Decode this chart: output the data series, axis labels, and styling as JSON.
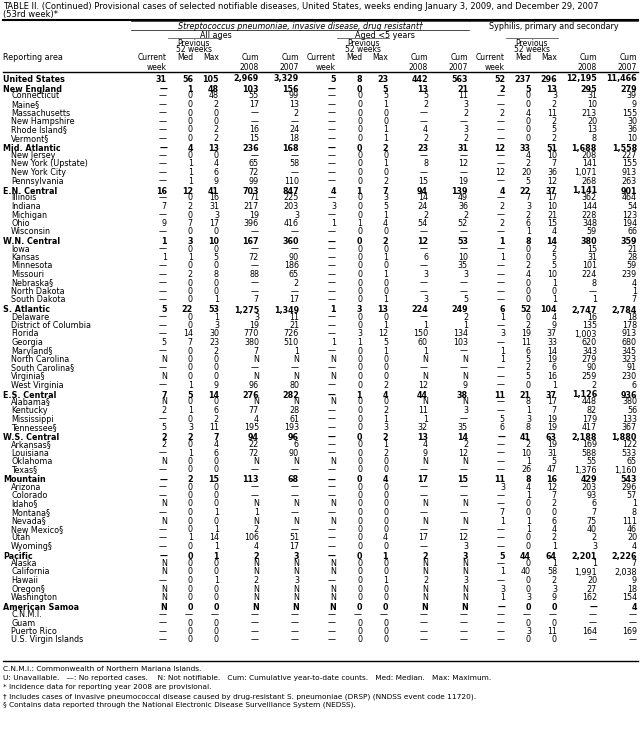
{
  "title1": "TABLE II. (Continued) Provisional cases of selected notifiable diseases, United States, weeks ending January 3, 2009, and December 29, 2007",
  "title2": "(53rd week)*",
  "col_group1": "Streptococcus pneumoniae, invasive disease, drug resistant†",
  "col_group2": "All ages",
  "col_group3": "Aged <5 years",
  "col_group4": "Syphilis, primary and secondary",
  "rows": [
    [
      "United States",
      "31",
      "56",
      "105",
      "2,969",
      "3,329",
      "5",
      "8",
      "23",
      "442",
      "563",
      "52",
      "237",
      "296",
      "12,195",
      "11,466"
    ],
    [
      "New England",
      "—",
      "1",
      "48",
      "103",
      "156",
      "—",
      "0",
      "5",
      "13",
      "21",
      "2",
      "5",
      "13",
      "295",
      "279"
    ],
    [
      "Connecticut",
      "—",
      "0",
      "48",
      "55",
      "99",
      "—",
      "0",
      "5",
      "5",
      "11",
      "—",
      "0",
      "3",
      "31",
      "39"
    ],
    [
      "Maine§",
      "—",
      "0",
      "2",
      "17",
      "13",
      "—",
      "0",
      "1",
      "2",
      "3",
      "—",
      "0",
      "2",
      "10",
      "9"
    ],
    [
      "Massachusetts",
      "—",
      "0",
      "0",
      "—",
      "2",
      "—",
      "0",
      "0",
      "—",
      "2",
      "2",
      "4",
      "11",
      "213",
      "155"
    ],
    [
      "New Hampshire",
      "—",
      "0",
      "0",
      "—",
      "—",
      "—",
      "0",
      "0",
      "—",
      "—",
      "—",
      "0",
      "2",
      "20",
      "30"
    ],
    [
      "Rhode Island§",
      "—",
      "0",
      "2",
      "16",
      "24",
      "—",
      "0",
      "1",
      "4",
      "3",
      "—",
      "0",
      "5",
      "13",
      "36"
    ],
    [
      "Vermont§",
      "—",
      "0",
      "2",
      "15",
      "18",
      "—",
      "0",
      "1",
      "2",
      "2",
      "—",
      "0",
      "2",
      "8",
      "10"
    ],
    [
      "Mid. Atlantic",
      "—",
      "4",
      "13",
      "236",
      "168",
      "—",
      "0",
      "2",
      "23",
      "31",
      "12",
      "33",
      "51",
      "1,688",
      "1,558"
    ],
    [
      "New Jersey",
      "—",
      "0",
      "0",
      "—",
      "—",
      "—",
      "0",
      "0",
      "—",
      "—",
      "—",
      "4",
      "10",
      "208",
      "227"
    ],
    [
      "New York (Upstate)",
      "—",
      "1",
      "4",
      "65",
      "58",
      "—",
      "0",
      "1",
      "8",
      "12",
      "—",
      "2",
      "7",
      "141",
      "155"
    ],
    [
      "New York City",
      "—",
      "1",
      "6",
      "72",
      "—",
      "—",
      "0",
      "0",
      "—",
      "—",
      "12",
      "20",
      "36",
      "1,071",
      "913"
    ],
    [
      "Pennsylvania",
      "—",
      "1",
      "9",
      "99",
      "110",
      "—",
      "0",
      "2",
      "15",
      "19",
      "—",
      "5",
      "12",
      "268",
      "263"
    ],
    [
      "E.N. Central",
      "16",
      "12",
      "41",
      "703",
      "847",
      "4",
      "1",
      "7",
      "94",
      "139",
      "4",
      "22",
      "37",
      "1,141",
      "901"
    ],
    [
      "Illinois",
      "—",
      "0",
      "16",
      "71",
      "225",
      "—",
      "0",
      "3",
      "14",
      "49",
      "—",
      "7",
      "17",
      "362",
      "464"
    ],
    [
      "Indiana",
      "7",
      "2",
      "31",
      "217",
      "203",
      "3",
      "0",
      "5",
      "24",
      "36",
      "2",
      "3",
      "10",
      "144",
      "54"
    ],
    [
      "Michigan",
      "—",
      "0",
      "3",
      "19",
      "3",
      "—",
      "0",
      "1",
      "2",
      "2",
      "—",
      "2",
      "21",
      "228",
      "123"
    ],
    [
      "Ohio",
      "9",
      "7",
      "17",
      "396",
      "416",
      "1",
      "1",
      "4",
      "54",
      "52",
      "2",
      "6",
      "15",
      "348",
      "194"
    ],
    [
      "Wisconsin",
      "—",
      "0",
      "0",
      "—",
      "—",
      "—",
      "0",
      "0",
      "—",
      "—",
      "—",
      "1",
      "4",
      "59",
      "66"
    ],
    [
      "W.N. Central",
      "1",
      "3",
      "10",
      "167",
      "360",
      "—",
      "0",
      "2",
      "12",
      "53",
      "1",
      "8",
      "14",
      "380",
      "359"
    ],
    [
      "Iowa",
      "—",
      "0",
      "0",
      "—",
      "—",
      "—",
      "0",
      "0",
      "—",
      "—",
      "—",
      "0",
      "2",
      "15",
      "21"
    ],
    [
      "Kansas",
      "1",
      "1",
      "5",
      "72",
      "90",
      "—",
      "0",
      "1",
      "6",
      "10",
      "1",
      "0",
      "5",
      "31",
      "28"
    ],
    [
      "Minnesota",
      "—",
      "0",
      "0",
      "—",
      "186",
      "—",
      "0",
      "0",
      "—",
      "35",
      "—",
      "2",
      "5",
      "101",
      "59"
    ],
    [
      "Missouri",
      "—",
      "2",
      "8",
      "88",
      "65",
      "—",
      "0",
      "1",
      "3",
      "3",
      "—",
      "4",
      "10",
      "224",
      "239"
    ],
    [
      "Nebraska§",
      "—",
      "0",
      "0",
      "—",
      "2",
      "—",
      "0",
      "0",
      "—",
      "—",
      "—",
      "0",
      "1",
      "8",
      "4"
    ],
    [
      "North Dakota",
      "—",
      "0",
      "0",
      "—",
      "—",
      "—",
      "0",
      "0",
      "—",
      "—",
      "—",
      "0",
      "0",
      "—",
      "1"
    ],
    [
      "South Dakota",
      "—",
      "0",
      "1",
      "7",
      "17",
      "—",
      "0",
      "1",
      "3",
      "5",
      "—",
      "0",
      "1",
      "1",
      "7"
    ],
    [
      "S. Atlantic",
      "5",
      "22",
      "53",
      "1,275",
      "1,349",
      "1",
      "3",
      "13",
      "224",
      "249",
      "6",
      "52",
      "104",
      "2,747",
      "2,784"
    ],
    [
      "Delaware",
      "—",
      "0",
      "1",
      "3",
      "11",
      "—",
      "0",
      "0",
      "—",
      "2",
      "1",
      "0",
      "4",
      "16",
      "18"
    ],
    [
      "District of Columbia",
      "—",
      "0",
      "3",
      "19",
      "21",
      "—",
      "0",
      "1",
      "1",
      "1",
      "—",
      "2",
      "9",
      "135",
      "178"
    ],
    [
      "Florida",
      "—",
      "14",
      "30",
      "770",
      "726",
      "—",
      "3",
      "12",
      "150",
      "134",
      "3",
      "19",
      "37",
      "1,003",
      "913"
    ],
    [
      "Georgia",
      "5",
      "7",
      "23",
      "380",
      "510",
      "1",
      "1",
      "5",
      "60",
      "103",
      "—",
      "11",
      "33",
      "620",
      "680"
    ],
    [
      "Maryland§",
      "—",
      "0",
      "2",
      "7",
      "1",
      "—",
      "0",
      "1",
      "1",
      "—",
      "1",
      "6",
      "14",
      "343",
      "345"
    ],
    [
      "North Carolina",
      "N",
      "0",
      "0",
      "N",
      "N",
      "N",
      "0",
      "0",
      "N",
      "N",
      "1",
      "5",
      "19",
      "279",
      "323"
    ],
    [
      "South Carolina§",
      "—",
      "0",
      "0",
      "—",
      "—",
      "—",
      "0",
      "0",
      "—",
      "—",
      "—",
      "2",
      "6",
      "90",
      "91"
    ],
    [
      "Virginia§",
      "N",
      "0",
      "0",
      "N",
      "N",
      "N",
      "0",
      "0",
      "N",
      "N",
      "—",
      "5",
      "16",
      "259",
      "230"
    ],
    [
      "West Virginia",
      "—",
      "1",
      "9",
      "96",
      "80",
      "—",
      "0",
      "2",
      "12",
      "9",
      "—",
      "0",
      "1",
      "2",
      "6"
    ],
    [
      "E.S. Central",
      "7",
      "5",
      "14",
      "276",
      "282",
      "—",
      "1",
      "4",
      "44",
      "38",
      "11",
      "21",
      "37",
      "1,126",
      "936"
    ],
    [
      "Alabama§",
      "N",
      "0",
      "0",
      "N",
      "N",
      "N",
      "0",
      "0",
      "N",
      "N",
      "—",
      "8",
      "17",
      "448",
      "380"
    ],
    [
      "Kentucky",
      "2",
      "1",
      "6",
      "77",
      "28",
      "—",
      "0",
      "2",
      "11",
      "3",
      "—",
      "1",
      "7",
      "82",
      "56"
    ],
    [
      "Mississippi",
      "—",
      "0",
      "2",
      "4",
      "61",
      "—",
      "0",
      "1",
      "1",
      "—",
      "5",
      "3",
      "19",
      "179",
      "133"
    ],
    [
      "Tennessee§",
      "5",
      "3",
      "11",
      "195",
      "193",
      "—",
      "0",
      "3",
      "32",
      "35",
      "6",
      "8",
      "19",
      "417",
      "367"
    ],
    [
      "W.S. Central",
      "2",
      "2",
      "7",
      "94",
      "96",
      "—",
      "0",
      "2",
      "13",
      "14",
      "—",
      "41",
      "63",
      "2,188",
      "1,880"
    ],
    [
      "Arkansas§",
      "2",
      "0",
      "4",
      "22",
      "6",
      "—",
      "0",
      "1",
      "4",
      "2",
      "—",
      "2",
      "19",
      "169",
      "122"
    ],
    [
      "Louisiana",
      "—",
      "1",
      "6",
      "72",
      "90",
      "—",
      "0",
      "2",
      "9",
      "12",
      "—",
      "10",
      "31",
      "588",
      "533"
    ],
    [
      "Oklahoma",
      "N",
      "0",
      "0",
      "N",
      "N",
      "N",
      "0",
      "0",
      "N",
      "N",
      "—",
      "1",
      "5",
      "55",
      "65"
    ],
    [
      "Texas§",
      "—",
      "0",
      "0",
      "—",
      "—",
      "—",
      "0",
      "0",
      "—",
      "—",
      "—",
      "26",
      "47",
      "1,376",
      "1,160"
    ],
    [
      "Mountain",
      "—",
      "2",
      "15",
      "113",
      "68",
      "—",
      "0",
      "4",
      "17",
      "15",
      "11",
      "8",
      "16",
      "429",
      "543"
    ],
    [
      "Arizona",
      "—",
      "0",
      "0",
      "—",
      "—",
      "—",
      "0",
      "0",
      "—",
      "—",
      "3",
      "4",
      "12",
      "203",
      "296"
    ],
    [
      "Colorado",
      "—",
      "0",
      "0",
      "—",
      "—",
      "—",
      "0",
      "0",
      "—",
      "—",
      "—",
      "1",
      "7",
      "93",
      "57"
    ],
    [
      "Idaho§",
      "N",
      "0",
      "0",
      "N",
      "N",
      "N",
      "0",
      "0",
      "N",
      "N",
      "—",
      "0",
      "2",
      "6",
      "1"
    ],
    [
      "Montana§",
      "—",
      "0",
      "1",
      "1",
      "—",
      "—",
      "0",
      "0",
      "—",
      "—",
      "7",
      "0",
      "0",
      "7",
      "8"
    ],
    [
      "Nevada§",
      "N",
      "0",
      "0",
      "N",
      "N",
      "N",
      "0",
      "0",
      "N",
      "N",
      "1",
      "1",
      "6",
      "75",
      "111"
    ],
    [
      "New Mexico§",
      "—",
      "0",
      "1",
      "2",
      "—",
      "—",
      "0",
      "0",
      "—",
      "—",
      "—",
      "1",
      "4",
      "40",
      "46"
    ],
    [
      "Utah",
      "—",
      "1",
      "14",
      "106",
      "51",
      "—",
      "0",
      "4",
      "17",
      "12",
      "—",
      "0",
      "2",
      "2",
      "20"
    ],
    [
      "Wyoming§",
      "—",
      "0",
      "1",
      "4",
      "17",
      "—",
      "0",
      "0",
      "—",
      "3",
      "—",
      "0",
      "1",
      "3",
      "4"
    ],
    [
      "Pacific",
      "—",
      "0",
      "1",
      "2",
      "3",
      "—",
      "0",
      "1",
      "2",
      "3",
      "5",
      "44",
      "64",
      "2,201",
      "2,226"
    ],
    [
      "Alaska",
      "N",
      "0",
      "0",
      "N",
      "N",
      "N",
      "0",
      "0",
      "N",
      "N",
      "—",
      "0",
      "1",
      "1",
      "7"
    ],
    [
      "California",
      "N",
      "0",
      "0",
      "N",
      "N",
      "N",
      "0",
      "0",
      "N",
      "N",
      "1",
      "40",
      "58",
      "1,991",
      "2,038"
    ],
    [
      "Hawaii",
      "—",
      "0",
      "1",
      "2",
      "3",
      "—",
      "0",
      "1",
      "2",
      "3",
      "—",
      "0",
      "2",
      "20",
      "9"
    ],
    [
      "Oregon§",
      "N",
      "0",
      "0",
      "N",
      "N",
      "N",
      "0",
      "0",
      "N",
      "N",
      "3",
      "0",
      "3",
      "27",
      "18"
    ],
    [
      "Washington",
      "N",
      "0",
      "0",
      "N",
      "N",
      "N",
      "0",
      "0",
      "N",
      "N",
      "1",
      "3",
      "9",
      "162",
      "154"
    ],
    [
      "American Samoa",
      "N",
      "0",
      "0",
      "N",
      "N",
      "N",
      "0",
      "0",
      "N",
      "N",
      "—",
      "0",
      "0",
      "—",
      "4"
    ],
    [
      "C.N.M.I.",
      "—",
      "—",
      "—",
      "—",
      "—",
      "—",
      "—",
      "—",
      "—",
      "—",
      "—",
      "—",
      "—",
      "—",
      "—"
    ],
    [
      "Guam",
      "—",
      "0",
      "0",
      "—",
      "—",
      "—",
      "0",
      "0",
      "—",
      "—",
      "—",
      "0",
      "0",
      "—",
      "—"
    ],
    [
      "Puerto Rico",
      "—",
      "0",
      "0",
      "—",
      "—",
      "—",
      "0",
      "0",
      "—",
      "—",
      "—",
      "3",
      "11",
      "164",
      "169"
    ],
    [
      "U.S. Virgin Islands",
      "—",
      "0",
      "0",
      "—",
      "—",
      "—",
      "0",
      "0",
      "—",
      "—",
      "—",
      "0",
      "0",
      "—",
      "—"
    ]
  ],
  "section_rows": [
    0,
    1,
    8,
    13,
    19,
    27,
    37,
    42,
    47,
    56,
    62
  ],
  "footer_lines": [
    "C.N.M.I.: Commonwealth of Northern Mariana Islands.",
    "U: Unavailable.   —: No reported cases.    N: Not notifiable.   Cum: Cumulative year-to-date counts.   Med: Median.   Max: Maximum.",
    "* Incidence data for reporting year 2008 are provisional.",
    "† Includes cases of invasive pneumococcal disease caused by drug-resistant S. pneumoniae (DRSP) (NNDSS event code 11720).",
    "§ Contains data reported through the National Electronic Disease Surveillance System (NEDSS)."
  ]
}
